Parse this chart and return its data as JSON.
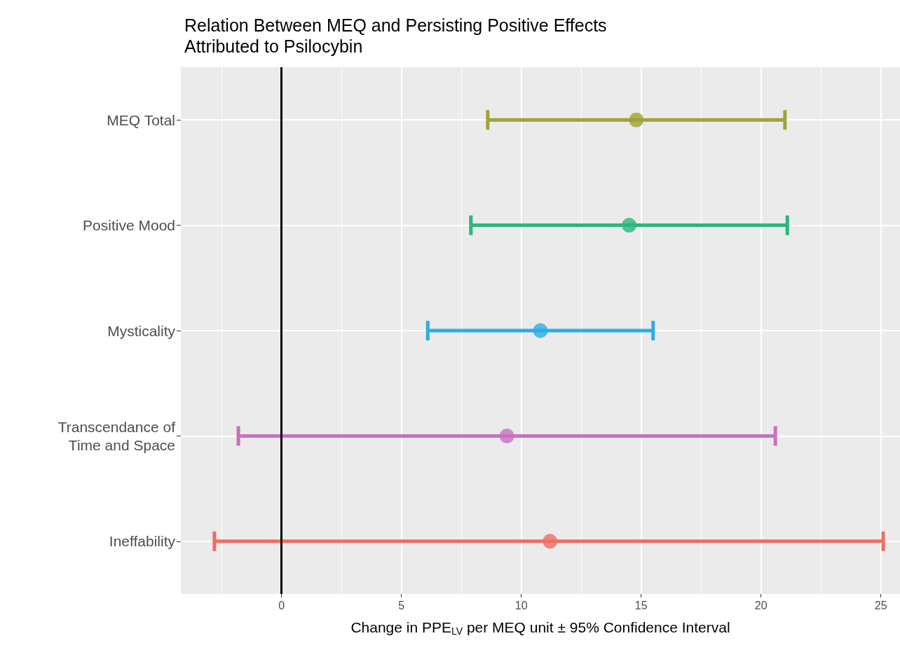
{
  "chart_data": {
    "type": "scatter",
    "orientation": "horizontal",
    "title": "Relation Between MEQ and Persisting Positive Effects\nAttributed to Psilocybin",
    "xlabel": "Change in PPE$_{LV}$ per MEQ unit ± 95% Confidence Interval",
    "categories": [
      "MEQ Total",
      "Positive Mood",
      "Mysticality",
      "Transcendance of\nTime and Space",
      "Ineffability"
    ],
    "values": [
      14.8,
      14.5,
      10.8,
      9.4,
      11.2
    ],
    "errors": [
      [
        8.6,
        21.0
      ],
      [
        7.9,
        21.1
      ],
      [
        6.1,
        15.5
      ],
      [
        -1.8,
        20.6
      ],
      [
        -2.8,
        25.1
      ]
    ],
    "colors": [
      "#9da436",
      "#2bb77b",
      "#2aaee3",
      "#c96fc4",
      "#ec6f62"
    ],
    "xlim": [
      -4.2,
      25.8
    ],
    "xticks": [
      0,
      5,
      10,
      15,
      20,
      25
    ],
    "ref_lines": [
      {
        "axis": "x",
        "value": 0,
        "color": "#000000"
      }
    ],
    "grid": true,
    "marker": "circle"
  }
}
